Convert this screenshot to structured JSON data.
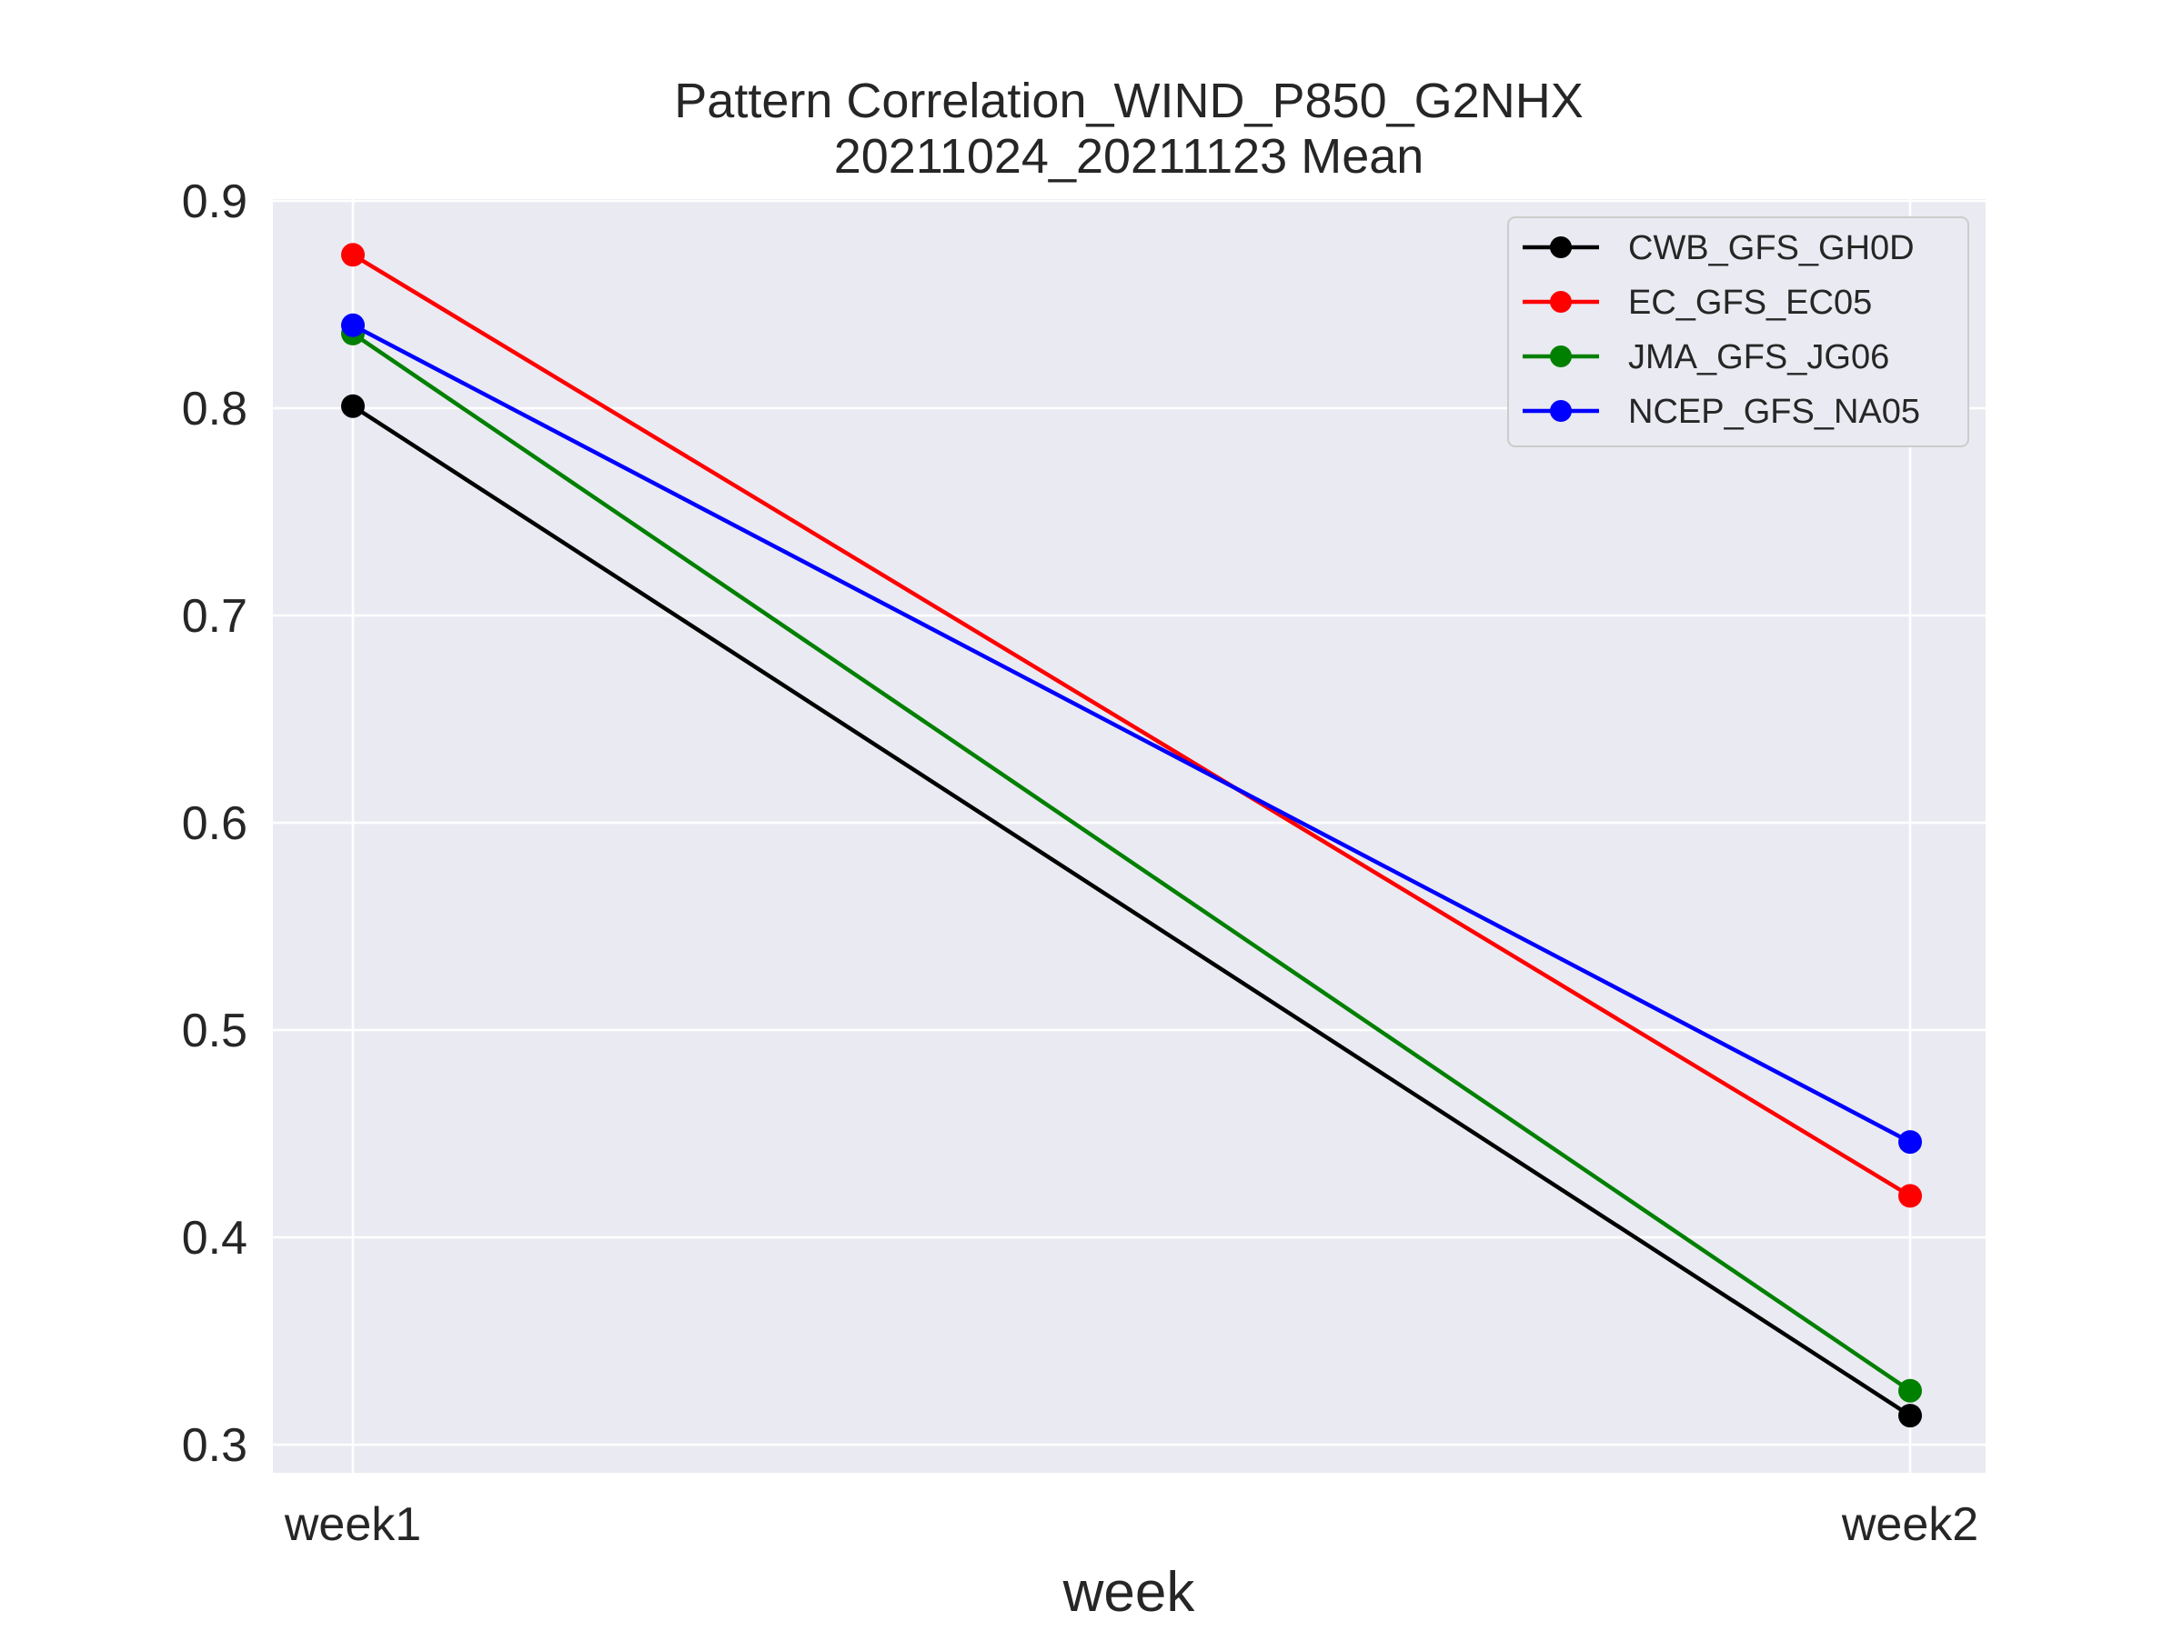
{
  "chart_data": {
    "type": "line",
    "title": "Pattern Correlation_WIND_P850_G2NHX",
    "subtitle": "20211024_20211123 Mean",
    "xlabel": "week",
    "ylabel": "",
    "categories": [
      "week1",
      "week2"
    ],
    "ylim": [
      0.286,
      0.9
    ],
    "yticks": [
      0.3,
      0.4,
      0.5,
      0.6,
      0.7,
      0.8,
      0.9
    ],
    "ytick_labels": [
      "0.3",
      "0.4",
      "0.5",
      "0.6",
      "0.7",
      "0.8",
      "0.9"
    ],
    "grid": true,
    "legend_position": "top-right",
    "series": [
      {
        "name": "CWB_GFS_GH0D",
        "color": "#000000",
        "values": [
          0.801,
          0.314
        ]
      },
      {
        "name": "EC_GFS_EC05",
        "color": "#ff0000",
        "values": [
          0.874,
          0.42
        ]
      },
      {
        "name": "JMA_GFS_JG06",
        "color": "#008000",
        "values": [
          0.836,
          0.326
        ]
      },
      {
        "name": "NCEP_GFS_NA05",
        "color": "#0000ff",
        "values": [
          0.84,
          0.446
        ]
      }
    ]
  }
}
